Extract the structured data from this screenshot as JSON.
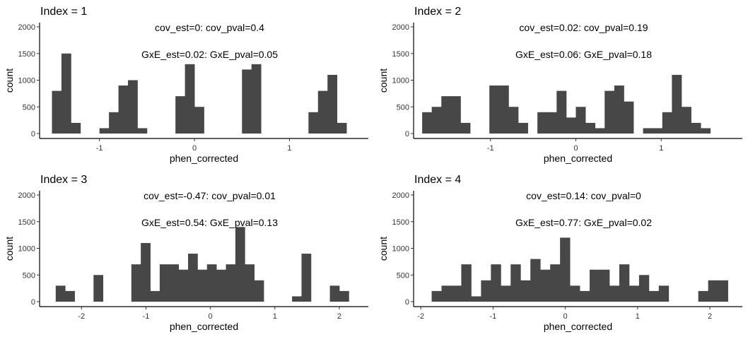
{
  "chart_data": [
    {
      "type": "bar",
      "title": "Index = 1",
      "annotations": [
        "cov_est=0: cov_pval=0.4",
        "GxE_est=0.02: GxE_pval=0.05"
      ],
      "xlabel": "phen_corrected",
      "ylabel": "count",
      "xlim": [
        -1.63,
        1.83
      ],
      "ylim": [
        0,
        2000
      ],
      "xticks": [
        -1,
        0,
        1
      ],
      "xtick_labels": [
        "-1",
        "0",
        "1"
      ],
      "yticks": [
        0,
        500,
        1000,
        1500,
        2000
      ],
      "ytick_labels": [
        "0",
        "500",
        "1000",
        "1500",
        "2000"
      ],
      "bin_edges": [
        -1.5,
        -1.4,
        -1.3,
        -1.2,
        -1.1,
        -1.0,
        -0.9,
        -0.8,
        -0.7,
        -0.6,
        -0.5,
        -0.4,
        -0.3,
        -0.2,
        -0.1,
        0.0,
        0.1,
        0.2,
        0.3,
        0.4,
        0.5,
        0.6,
        0.7,
        0.8,
        0.9,
        1.0,
        1.1,
        1.2,
        1.3,
        1.4,
        1.5,
        1.6
      ],
      "counts": [
        800,
        1500,
        200,
        0,
        0,
        100,
        400,
        900,
        1000,
        100,
        0,
        0,
        0,
        700,
        1300,
        500,
        0,
        0,
        0,
        0,
        1200,
        1300,
        0,
        0,
        0,
        0,
        0,
        400,
        800,
        1100,
        200
      ]
    },
    {
      "type": "bar",
      "title": "Index = 2",
      "annotations": [
        "cov_est=0.02: cov_pval=0.19",
        "GxE_est=0.06: GxE_pval=0.18"
      ],
      "xlabel": "phen_corrected",
      "ylabel": "count",
      "xlim": [
        -1.9,
        1.95
      ],
      "ylim": [
        0,
        2000
      ],
      "xticks": [
        -1,
        0,
        1
      ],
      "xtick_labels": [
        "-1",
        "0",
        "1"
      ],
      "yticks": [
        0,
        500,
        1000,
        1500,
        2000
      ],
      "ytick_labels": [
        "0",
        "500",
        "1000",
        "1500",
        "2000"
      ],
      "bin_edges": [
        -1.8,
        -1.6875,
        -1.575,
        -1.4625,
        -1.35,
        -1.2375,
        -1.125,
        -1.0125,
        -0.9,
        -0.7875,
        -0.675,
        -0.5625,
        -0.45,
        -0.3375,
        -0.225,
        -0.1125,
        0.0,
        0.1125,
        0.225,
        0.3375,
        0.45,
        0.5625,
        0.675,
        0.7875,
        0.9,
        1.0125,
        1.125,
        1.2375,
        1.35,
        1.4625,
        1.575,
        1.6875
      ],
      "counts": [
        400,
        500,
        700,
        700,
        200,
        0,
        0,
        900,
        900,
        500,
        200,
        0,
        400,
        400,
        800,
        300,
        500,
        200,
        100,
        800,
        900,
        600,
        0,
        100,
        100,
        400,
        1100,
        500,
        200,
        100,
        0
      ]
    },
    {
      "type": "bar",
      "title": "Index = 3",
      "annotations": [
        "cov_est=-0.47: cov_pval=0.01",
        "GxE_est=0.54: GxE_pval=0.13"
      ],
      "xlabel": "phen_corrected",
      "ylabel": "count",
      "xlim": [
        -2.65,
        2.45
      ],
      "ylim": [
        0,
        2000
      ],
      "xticks": [
        -2,
        -1,
        0,
        1,
        2
      ],
      "xtick_labels": [
        "-2",
        "-1",
        "0",
        "1",
        "2"
      ],
      "yticks": [
        0,
        500,
        1000,
        1500,
        2000
      ],
      "ytick_labels": [
        "0",
        "500",
        "1000",
        "1500",
        "2000"
      ],
      "bin_edges": [
        -2.4,
        -2.2533,
        -2.1067,
        -1.96,
        -1.8133,
        -1.6667,
        -1.52,
        -1.3733,
        -1.2267,
        -1.08,
        -0.9333,
        -0.7867,
        -0.64,
        -0.4933,
        -0.3467,
        -0.2,
        -0.0533,
        0.0933,
        0.24,
        0.3867,
        0.5333,
        0.68,
        0.8267,
        0.9733,
        1.12,
        1.2667,
        1.4133,
        1.56,
        1.7067,
        1.8533,
        2.0,
        2.1467
      ],
      "counts": [
        300,
        200,
        0,
        0,
        500,
        0,
        0,
        0,
        700,
        1100,
        200,
        700,
        700,
        600,
        900,
        600,
        700,
        600,
        700,
        1400,
        700,
        400,
        0,
        0,
        0,
        100,
        900,
        0,
        0,
        300,
        200
      ]
    },
    {
      "type": "bar",
      "title": "Index = 4",
      "annotations": [
        "cov_est=0.14: cov_pval=0",
        "GxE_est=0.77: GxE_pval=0.02"
      ],
      "xlabel": "phen_corrected",
      "ylabel": "count",
      "xlim": [
        -2.1,
        2.45
      ],
      "ylim": [
        0,
        2000
      ],
      "xticks": [
        -2,
        -1,
        0,
        1,
        2
      ],
      "xtick_labels": [
        "-2",
        "-1",
        "0",
        "1",
        "2"
      ],
      "yticks": [
        0,
        500,
        1000,
        1500,
        2000
      ],
      "ytick_labels": [
        "0",
        "500",
        "1000",
        "1500",
        "2000"
      ],
      "bin_edges": [
        -1.85,
        -1.7133,
        -1.5767,
        -1.44,
        -1.3033,
        -1.1667,
        -1.03,
        -0.8933,
        -0.7567,
        -0.62,
        -0.4833,
        -0.3467,
        -0.21,
        -0.0733,
        0.0633,
        0.2,
        0.3367,
        0.4733,
        0.61,
        0.7467,
        0.8833,
        1.02,
        1.1567,
        1.2933,
        1.43,
        1.5667,
        1.7033,
        1.84,
        1.9767,
        2.1133,
        2.25
      ],
      "counts": [
        200,
        300,
        300,
        700,
        100,
        400,
        700,
        300,
        700,
        400,
        800,
        600,
        700,
        1200,
        300,
        200,
        600,
        600,
        300,
        700,
        300,
        500,
        200,
        300,
        0,
        0,
        0,
        200,
        400,
        400
      ]
    }
  ]
}
